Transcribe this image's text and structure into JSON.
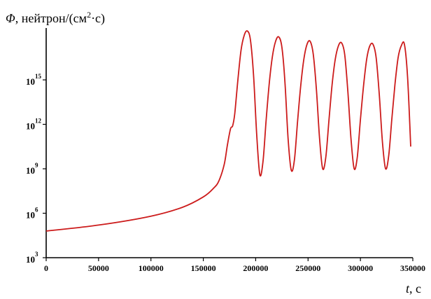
{
  "chart_data": {
    "type": "line",
    "ylabel_italic": "Φ",
    "ylabel_rest": ", нейтрон/(см",
    "ylabel_sup": "2",
    "ylabel_end": "·с)",
    "xlabel_italic": "t",
    "xlabel_rest": ", с",
    "yscale": "log",
    "xlim": [
      0,
      350000
    ],
    "ylim_exponent": [
      3,
      18.5
    ],
    "x_ticks": [
      "0",
      "50000",
      "100000",
      "150000",
      "200000",
      "250000",
      "300000",
      "350000"
    ],
    "y_ticks": [
      {
        "base": "10",
        "exp": "3"
      },
      {
        "base": "10",
        "exp": "6"
      },
      {
        "base": "10",
        "exp": "9"
      },
      {
        "base": "10",
        "exp": "12"
      },
      {
        "base": "10",
        "exp": "15"
      }
    ],
    "series": [
      {
        "color": "#cc1b1b",
        "x": [
          0,
          50000,
          100000,
          130000,
          150000,
          160000,
          165000,
          170000,
          173000,
          176000,
          178000,
          180000,
          183000,
          186000,
          189000,
          192000,
          195000,
          198000,
          201000,
          204000,
          207000,
          210000,
          213000,
          216000,
          219000,
          222000,
          225000,
          228000,
          231000,
          234000,
          237000,
          240000,
          243000,
          246000,
          249000,
          252000,
          255000,
          258000,
          261000,
          264000,
          267000,
          270000,
          273000,
          276000,
          279000,
          282000,
          285000,
          288000,
          291000,
          294000,
          297000,
          300000,
          303000,
          306000,
          309000,
          312000,
          315000,
          318000,
          321000,
          324000,
          327000,
          330000,
          333000,
          336000,
          339000,
          342000,
          345000,
          348000
        ],
        "y_exponent": [
          4.8,
          5.2,
          5.8,
          6.4,
          7.1,
          7.7,
          8.2,
          9.3,
          10.6,
          11.7,
          11.9,
          12.7,
          15.0,
          17.0,
          18.0,
          18.3,
          17.7,
          15.3,
          11.3,
          8.6,
          9.5,
          12.3,
          14.8,
          16.6,
          17.6,
          17.9,
          17.2,
          14.8,
          11.0,
          8.9,
          9.6,
          12.2,
          14.6,
          16.4,
          17.4,
          17.6,
          16.7,
          14.3,
          11.0,
          9.0,
          9.8,
          12.3,
          14.7,
          16.4,
          17.3,
          17.5,
          16.7,
          14.2,
          11.0,
          9.0,
          9.8,
          12.3,
          14.6,
          16.4,
          17.3,
          17.4,
          16.5,
          14.0,
          10.8,
          9.0,
          9.9,
          12.4,
          14.7,
          16.5,
          17.3,
          17.4,
          15.2,
          10.5
        ]
      }
    ]
  }
}
